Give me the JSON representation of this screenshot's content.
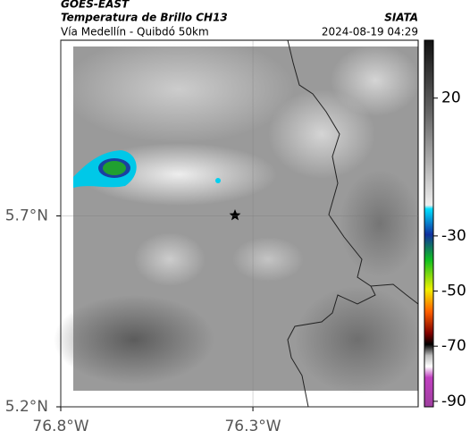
{
  "header": {
    "satellite": "GOES-EAST",
    "product": "Temperatura de Brillo CH13",
    "route": "Vía Medellín - Quibdó 50km",
    "source": "SIATA",
    "timestamp": "2024-08-19 04:29"
  },
  "map": {
    "xlim": [
      -76.8,
      -75.87
    ],
    "ylim": [
      5.2,
      6.16
    ],
    "xticks": [
      {
        "value": -76.8,
        "label": "76.8°W"
      },
      {
        "value": -76.3,
        "label": "76.3°W"
      }
    ],
    "yticks": [
      {
        "value": 5.2,
        "label": "5.2°N"
      },
      {
        "value": 5.7,
        "label": "5.7°N"
      }
    ],
    "colorbar": {
      "lim": [
        -92,
        41
      ],
      "ticks": [
        20,
        -30,
        -50,
        -70,
        -90
      ]
    }
  }
}
